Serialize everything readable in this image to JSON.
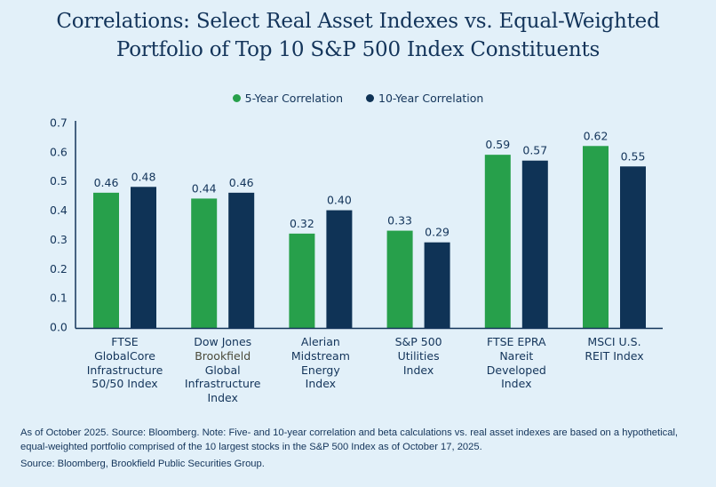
{
  "chart_data": {
    "type": "bar",
    "title": "Correlations: Select Real Asset Indexes vs. Equal-Weighted Portfolio of Top 10 S&P 500 Index Constituents",
    "title_lines": [
      "Correlations: Select Real Asset Indexes vs. Equal-Weighted",
      "Portfolio of Top 10 S&P 500 Index Constituents"
    ],
    "xlabel": "",
    "ylabel": "",
    "ylim": [
      0,
      0.7
    ],
    "yticks": [
      "0.0",
      "0.1",
      "0.2",
      "0.3",
      "0.4",
      "0.5",
      "0.6",
      "0.7"
    ],
    "grid": false,
    "legend_position": "top-center",
    "categories": [
      "FTSE GlobalCore Infrastructure 50/50 Index",
      "Dow Jones Brookfield Global Infrastructure Index",
      "Alerian Midstream Energy Index",
      "S&P 500 Utilities Index",
      "FTSE EPRA Nareit Developed Index",
      "MSCI U.S. REIT Index"
    ],
    "category_lines": [
      [
        "FTSE",
        "GlobalCore",
        "Infrastructure",
        "50/50 Index"
      ],
      [
        "Dow Jones",
        "Brookfield",
        "Global",
        "Infrastructure",
        "Index"
      ],
      [
        "Alerian",
        "Midstream",
        "Energy",
        "Index"
      ],
      [
        "S&P 500",
        "Utilities",
        "Index"
      ],
      [
        "FTSE EPRA",
        "Nareit",
        "Developed",
        "Index"
      ],
      [
        "MSCI U.S.",
        "REIT Index"
      ]
    ],
    "series": [
      {
        "name": "5-Year Correlation",
        "color": "#27a04b",
        "values": [
          0.46,
          0.44,
          0.32,
          0.33,
          0.59,
          0.62
        ],
        "labels": [
          "0.46",
          "0.44",
          "0.32",
          "0.33",
          "0.59",
          "0.62"
        ]
      },
      {
        "name": "10-Year Correlation",
        "color": "#0f3356",
        "values": [
          0.48,
          0.46,
          0.4,
          0.29,
          0.57,
          0.55
        ],
        "labels": [
          "0.48",
          "0.46",
          "0.40",
          "0.29",
          "0.57",
          "0.55"
        ]
      }
    ]
  },
  "footnote": "As of October 2025. Source: Bloomberg. Note: Five- and 10-year correlation and beta calculations vs. real asset indexes are based on a hypothetical, equal-weighted portfolio comprised of the 10 largest stocks in the S&P 500 Index as of October 17, 2025.",
  "source": "Source: Bloomberg, Brookfield Public Securities Group.",
  "colors": {
    "background": "#e2f0f9",
    "text": "#13345a",
    "axis": "#13345a"
  }
}
